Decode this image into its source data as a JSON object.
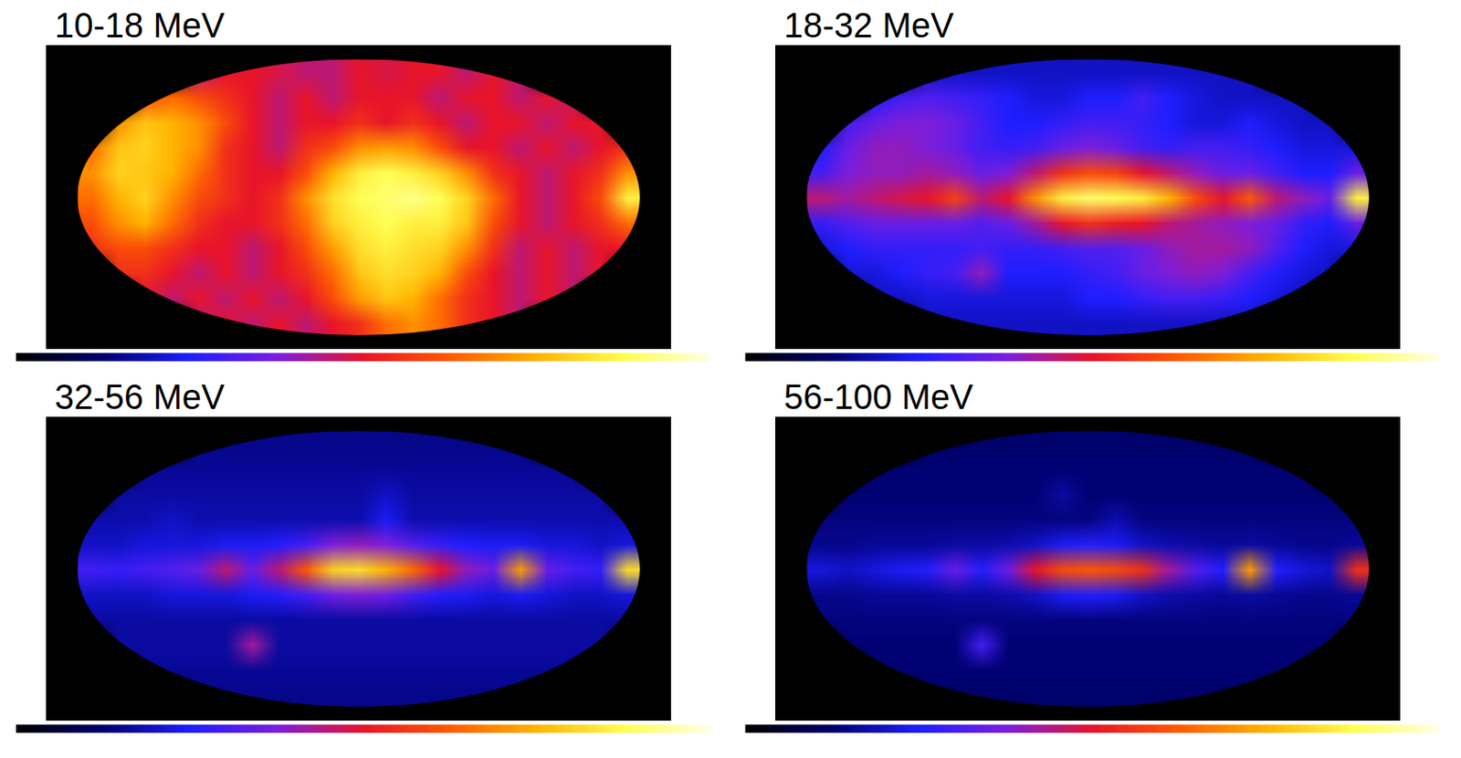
{
  "chart_data": [
    {
      "type": "heatmap",
      "title": "10-18 MeV",
      "color_range": [
        0,
        1
      ],
      "cells": [
        [
          null,
          null,
          null,
          null,
          0.45,
          0.5,
          0.5,
          0.48,
          0.45,
          0.45,
          0.5,
          0.48,
          0.5,
          0.5,
          0.45,
          0.5,
          0.45,
          null,
          null,
          null,
          null
        ],
        [
          null,
          null,
          0.6,
          0.65,
          0.6,
          0.55,
          0.5,
          0.45,
          0.5,
          0.45,
          0.5,
          0.5,
          0.5,
          0.45,
          0.5,
          0.5,
          0.45,
          0.5,
          0.45,
          null,
          null
        ],
        [
          null,
          0.7,
          0.78,
          0.75,
          0.7,
          0.6,
          0.5,
          0.45,
          0.5,
          0.5,
          0.55,
          0.5,
          0.55,
          0.5,
          0.45,
          0.5,
          0.5,
          0.45,
          0.5,
          0.5,
          null
        ],
        [
          0.65,
          0.78,
          0.8,
          0.75,
          0.7,
          0.55,
          0.5,
          0.45,
          0.55,
          0.6,
          0.7,
          0.72,
          0.7,
          0.6,
          0.5,
          0.5,
          0.45,
          0.5,
          0.45,
          0.5,
          0.55
        ],
        [
          0.7,
          0.8,
          0.78,
          0.75,
          0.65,
          0.55,
          0.5,
          0.5,
          0.6,
          0.75,
          0.85,
          0.88,
          0.85,
          0.8,
          0.7,
          0.55,
          0.5,
          0.45,
          0.5,
          0.55,
          0.7
        ],
        [
          0.65,
          0.75,
          0.8,
          0.7,
          0.6,
          0.55,
          0.5,
          0.55,
          0.7,
          0.82,
          0.88,
          0.9,
          0.92,
          0.88,
          0.8,
          0.65,
          0.5,
          0.45,
          0.5,
          0.6,
          0.85
        ],
        [
          0.6,
          0.7,
          0.75,
          0.65,
          0.55,
          0.5,
          0.5,
          0.55,
          0.65,
          0.8,
          0.85,
          0.88,
          0.85,
          0.85,
          0.78,
          0.6,
          0.5,
          0.45,
          0.5,
          0.55,
          0.65
        ],
        [
          0.55,
          0.6,
          0.6,
          0.55,
          0.5,
          0.5,
          0.45,
          0.5,
          0.6,
          0.72,
          0.82,
          0.85,
          0.82,
          0.8,
          0.7,
          0.55,
          0.45,
          0.5,
          0.45,
          0.5,
          0.5
        ],
        [
          null,
          0.55,
          0.55,
          0.5,
          0.45,
          0.5,
          0.45,
          0.5,
          0.55,
          0.65,
          0.78,
          0.82,
          0.8,
          0.75,
          0.6,
          0.5,
          0.45,
          0.5,
          0.45,
          0.5,
          null
        ],
        [
          null,
          null,
          0.5,
          0.45,
          0.5,
          0.45,
          0.5,
          0.45,
          0.5,
          0.6,
          0.72,
          0.78,
          0.75,
          0.65,
          0.55,
          0.5,
          0.45,
          0.5,
          0.45,
          null,
          null
        ],
        [
          null,
          null,
          null,
          null,
          0.45,
          0.5,
          0.45,
          0.5,
          0.45,
          0.5,
          0.55,
          0.65,
          0.7,
          0.65,
          0.55,
          0.5,
          0.45,
          null,
          null,
          null,
          null
        ]
      ]
    },
    {
      "type": "heatmap",
      "title": "18-32 MeV",
      "color_range": [
        0,
        1
      ],
      "cells": [
        [
          null,
          null,
          null,
          null,
          0.2,
          0.2,
          0.2,
          0.2,
          0.2,
          0.2,
          0.2,
          0.2,
          0.2,
          0.2,
          0.2,
          0.2,
          0.2,
          null,
          null,
          null,
          null
        ],
        [
          null,
          null,
          0.25,
          0.3,
          0.32,
          0.3,
          0.28,
          0.25,
          0.22,
          0.22,
          0.25,
          0.25,
          0.3,
          0.25,
          0.22,
          0.2,
          0.2,
          0.2,
          0.2,
          null,
          null
        ],
        [
          null,
          0.3,
          0.35,
          0.38,
          0.38,
          0.35,
          0.3,
          0.25,
          0.25,
          0.28,
          0.3,
          0.3,
          0.28,
          0.25,
          0.22,
          0.22,
          0.25,
          0.22,
          0.2,
          0.2,
          null
        ],
        [
          0.25,
          0.35,
          0.4,
          0.4,
          0.38,
          0.35,
          0.3,
          0.28,
          0.3,
          0.35,
          0.38,
          0.35,
          0.3,
          0.28,
          0.3,
          0.3,
          0.28,
          0.25,
          0.22,
          0.22,
          0.22
        ],
        [
          0.3,
          0.38,
          0.4,
          0.4,
          0.42,
          0.4,
          0.35,
          0.38,
          0.45,
          0.55,
          0.6,
          0.58,
          0.5,
          0.45,
          0.4,
          0.35,
          0.35,
          0.3,
          0.25,
          0.25,
          0.35
        ],
        [
          0.45,
          0.42,
          0.45,
          0.48,
          0.5,
          0.58,
          0.45,
          0.5,
          0.7,
          0.85,
          0.9,
          0.88,
          0.85,
          0.75,
          0.6,
          0.5,
          0.62,
          0.45,
          0.4,
          0.35,
          0.85
        ],
        [
          0.28,
          0.32,
          0.35,
          0.35,
          0.35,
          0.35,
          0.32,
          0.35,
          0.42,
          0.5,
          0.55,
          0.52,
          0.5,
          0.45,
          0.42,
          0.4,
          0.38,
          0.35,
          0.28,
          0.25,
          0.35
        ],
        [
          0.22,
          0.25,
          0.28,
          0.28,
          0.28,
          0.28,
          0.3,
          0.28,
          0.28,
          0.3,
          0.32,
          0.32,
          0.35,
          0.4,
          0.42,
          0.42,
          0.4,
          0.32,
          0.25,
          0.22,
          0.22
        ],
        [
          null,
          0.22,
          0.22,
          0.25,
          0.28,
          0.3,
          0.4,
          0.25,
          0.25,
          0.25,
          0.28,
          0.3,
          0.35,
          0.38,
          0.4,
          0.38,
          0.3,
          0.25,
          0.22,
          0.2,
          null
        ],
        [
          null,
          null,
          0.2,
          0.2,
          0.22,
          0.22,
          0.22,
          0.22,
          0.22,
          0.22,
          0.25,
          0.25,
          0.28,
          0.3,
          0.3,
          0.28,
          0.25,
          0.22,
          0.2,
          null,
          null
        ],
        [
          null,
          null,
          null,
          null,
          0.2,
          0.2,
          0.2,
          0.2,
          0.2,
          0.2,
          0.2,
          0.2,
          0.2,
          0.2,
          0.2,
          0.2,
          0.2,
          null,
          null,
          null,
          null
        ]
      ]
    },
    {
      "type": "heatmap",
      "title": "32-56 MeV",
      "color_range": [
        0,
        1
      ],
      "cells": [
        [
          null,
          null,
          null,
          null,
          0.15,
          0.15,
          0.15,
          0.15,
          0.15,
          0.15,
          0.15,
          0.15,
          0.15,
          0.15,
          0.15,
          0.15,
          0.15,
          null,
          null,
          null,
          null
        ],
        [
          null,
          null,
          0.16,
          0.16,
          0.16,
          0.16,
          0.16,
          0.16,
          0.16,
          0.16,
          0.16,
          0.16,
          0.16,
          0.16,
          0.16,
          0.16,
          0.16,
          0.16,
          0.16,
          null,
          null
        ],
        [
          null,
          0.17,
          0.17,
          0.17,
          0.17,
          0.17,
          0.17,
          0.17,
          0.17,
          0.17,
          0.17,
          0.2,
          0.17,
          0.17,
          0.17,
          0.17,
          0.17,
          0.17,
          0.17,
          0.17,
          null
        ],
        [
          0.18,
          0.18,
          0.18,
          0.2,
          0.18,
          0.18,
          0.18,
          0.18,
          0.18,
          0.18,
          0.18,
          0.24,
          0.18,
          0.18,
          0.18,
          0.18,
          0.18,
          0.18,
          0.18,
          0.18,
          0.18
        ],
        [
          0.2,
          0.2,
          0.22,
          0.22,
          0.22,
          0.24,
          0.24,
          0.26,
          0.3,
          0.38,
          0.4,
          0.38,
          0.32,
          0.28,
          0.25,
          0.24,
          0.24,
          0.22,
          0.22,
          0.2,
          0.22
        ],
        [
          0.3,
          0.28,
          0.3,
          0.32,
          0.35,
          0.45,
          0.35,
          0.45,
          0.62,
          0.8,
          0.82,
          0.75,
          0.65,
          0.5,
          0.4,
          0.35,
          0.72,
          0.35,
          0.3,
          0.28,
          0.82
        ],
        [
          0.2,
          0.2,
          0.2,
          0.22,
          0.22,
          0.22,
          0.24,
          0.26,
          0.3,
          0.36,
          0.38,
          0.36,
          0.3,
          0.26,
          0.24,
          0.22,
          0.24,
          0.22,
          0.2,
          0.2,
          0.22
        ],
        [
          0.17,
          0.17,
          0.17,
          0.17,
          0.17,
          0.17,
          0.17,
          0.17,
          0.17,
          0.17,
          0.17,
          0.17,
          0.17,
          0.17,
          0.17,
          0.17,
          0.17,
          0.17,
          0.17,
          0.17,
          0.17
        ],
        [
          null,
          0.17,
          0.17,
          0.17,
          0.17,
          0.17,
          0.42,
          0.17,
          0.17,
          0.17,
          0.17,
          0.17,
          0.17,
          0.17,
          0.17,
          0.17,
          0.17,
          0.17,
          0.17,
          0.17,
          null
        ],
        [
          null,
          null,
          0.16,
          0.16,
          0.16,
          0.16,
          0.16,
          0.16,
          0.16,
          0.16,
          0.16,
          0.16,
          0.16,
          0.16,
          0.16,
          0.16,
          0.16,
          0.16,
          0.16,
          null,
          null
        ],
        [
          null,
          null,
          null,
          null,
          0.15,
          0.15,
          0.15,
          0.15,
          0.15,
          0.15,
          0.15,
          0.15,
          0.15,
          0.15,
          0.15,
          0.15,
          0.15,
          null,
          null,
          null,
          null
        ]
      ]
    },
    {
      "type": "heatmap",
      "title": "56-100 MeV",
      "color_range": [
        0,
        1
      ],
      "cells": [
        [
          null,
          null,
          null,
          null,
          0.12,
          0.12,
          0.12,
          0.12,
          0.12,
          0.12,
          0.12,
          0.12,
          0.12,
          0.12,
          0.12,
          0.12,
          0.12,
          null,
          null,
          null,
          null
        ],
        [
          null,
          null,
          0.13,
          0.13,
          0.13,
          0.13,
          0.13,
          0.13,
          0.13,
          0.13,
          0.13,
          0.13,
          0.13,
          0.13,
          0.13,
          0.13,
          0.13,
          0.13,
          0.13,
          null,
          null
        ],
        [
          null,
          0.13,
          0.13,
          0.13,
          0.13,
          0.13,
          0.13,
          0.13,
          0.13,
          0.17,
          0.13,
          0.13,
          0.13,
          0.13,
          0.13,
          0.13,
          0.13,
          0.13,
          0.13,
          0.13,
          null
        ],
        [
          0.14,
          0.14,
          0.14,
          0.14,
          0.14,
          0.14,
          0.14,
          0.14,
          0.14,
          0.14,
          0.14,
          0.18,
          0.14,
          0.14,
          0.14,
          0.14,
          0.14,
          0.14,
          0.14,
          0.14,
          0.14
        ],
        [
          0.15,
          0.15,
          0.16,
          0.16,
          0.16,
          0.17,
          0.17,
          0.18,
          0.2,
          0.24,
          0.26,
          0.24,
          0.2,
          0.18,
          0.17,
          0.16,
          0.17,
          0.16,
          0.15,
          0.15,
          0.16
        ],
        [
          0.22,
          0.2,
          0.22,
          0.24,
          0.26,
          0.35,
          0.26,
          0.36,
          0.5,
          0.6,
          0.62,
          0.6,
          0.55,
          0.42,
          0.32,
          0.26,
          0.72,
          0.26,
          0.22,
          0.2,
          0.55
        ],
        [
          0.15,
          0.15,
          0.16,
          0.16,
          0.16,
          0.17,
          0.17,
          0.18,
          0.2,
          0.24,
          0.26,
          0.24,
          0.2,
          0.18,
          0.17,
          0.16,
          0.17,
          0.16,
          0.15,
          0.15,
          0.16
        ],
        [
          0.14,
          0.14,
          0.14,
          0.14,
          0.14,
          0.14,
          0.14,
          0.14,
          0.14,
          0.14,
          0.14,
          0.14,
          0.14,
          0.14,
          0.14,
          0.14,
          0.14,
          0.14,
          0.14,
          0.14,
          0.14
        ],
        [
          null,
          0.13,
          0.13,
          0.13,
          0.13,
          0.13,
          0.3,
          0.13,
          0.13,
          0.13,
          0.13,
          0.13,
          0.13,
          0.13,
          0.13,
          0.13,
          0.13,
          0.13,
          0.13,
          0.13,
          null
        ],
        [
          null,
          null,
          0.13,
          0.13,
          0.13,
          0.13,
          0.13,
          0.13,
          0.13,
          0.13,
          0.13,
          0.13,
          0.13,
          0.13,
          0.13,
          0.13,
          0.13,
          0.13,
          0.13,
          null,
          null
        ],
        [
          null,
          null,
          null,
          null,
          0.12,
          0.12,
          0.12,
          0.12,
          0.12,
          0.12,
          0.12,
          0.12,
          0.12,
          0.12,
          0.12,
          0.12,
          0.12,
          null,
          null,
          null,
          null
        ]
      ]
    }
  ]
}
